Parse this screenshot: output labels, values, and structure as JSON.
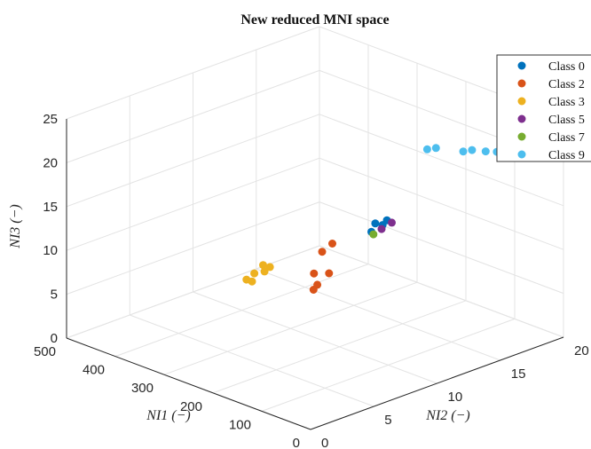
{
  "chart_data": {
    "type": "scatter",
    "title": "New reduced MNI space",
    "xlabel": "NI1 (−)",
    "ylabel": "NI2 (−)",
    "zlabel": "NI3 (−)",
    "xlim": [
      0,
      500
    ],
    "ylim": [
      0,
      20
    ],
    "zlim": [
      0,
      25
    ],
    "xticks": [
      "0",
      "100",
      "200",
      "300",
      "400",
      "500"
    ],
    "yticks": [
      "0",
      "5",
      "10",
      "15",
      "20"
    ],
    "zticks": [
      "0",
      "5",
      "10",
      "15",
      "20",
      "25"
    ],
    "grid": true,
    "legend_position": "top-right",
    "series": [
      {
        "name": "Class 0",
        "color": "#0072BD",
        "points": [
          [
            5,
            5,
            19.8
          ],
          [
            8,
            6,
            20.0
          ],
          [
            12,
            6.5,
            20.2
          ],
          [
            10,
            5.5,
            20.4
          ]
        ]
      },
      {
        "name": "Class 2",
        "color": "#D95319",
        "points": [
          [
            20,
            1,
            15.0
          ],
          [
            25,
            1.5,
            15.2
          ],
          [
            40,
            3,
            15.4
          ],
          [
            45,
            2,
            15.8
          ],
          [
            80,
            4,
            16.5
          ],
          [
            85,
            5,
            16.8
          ]
        ]
      },
      {
        "name": "Class 3",
        "color": "#EDB120",
        "points": [
          [
            460,
            14,
            1.8
          ],
          [
            465,
            13.5,
            1.0
          ],
          [
            468,
            13,
            0.5
          ],
          [
            470,
            14.5,
            0.6
          ],
          [
            472,
            15,
            0.8
          ],
          [
            462,
            13.2,
            0.3
          ]
        ]
      },
      {
        "name": "Class 5",
        "color": "#7E2F8E",
        "points": [
          [
            10,
            6,
            19.5
          ],
          [
            15,
            7,
            19.6
          ]
        ]
      },
      {
        "name": "Class 7",
        "color": "#77AC30",
        "points": [
          [
            6,
            5.2,
            19.4
          ]
        ]
      },
      {
        "name": "Class 9",
        "color": "#4DBEEE",
        "points": [
          [
            10,
            16,
            23.0
          ],
          [
            20,
            15.5,
            23.1
          ],
          [
            30,
            15,
            23.2
          ],
          [
            45,
            14.5,
            23.3
          ],
          [
            50,
            14,
            23.3
          ],
          [
            80,
            13,
            23.6
          ],
          [
            85,
            12.5,
            23.6
          ]
        ]
      }
    ]
  }
}
